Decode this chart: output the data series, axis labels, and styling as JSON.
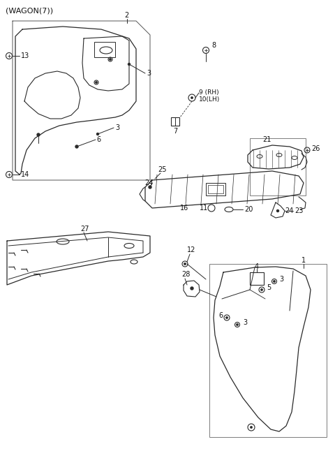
{
  "bg_color": "#ffffff",
  "line_color": "#2a2a2a",
  "title": "(WAGON(7))"
}
